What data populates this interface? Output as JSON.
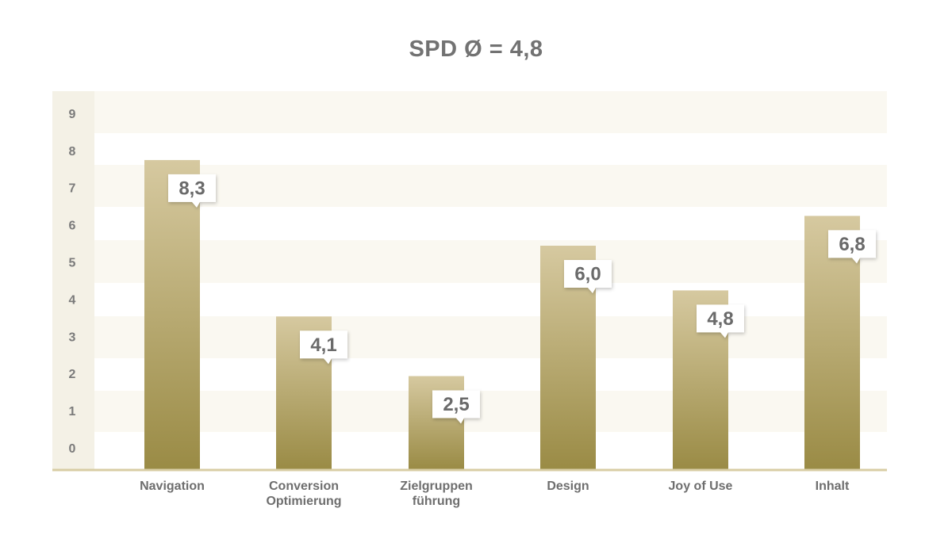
{
  "chart_data": {
    "type": "bar",
    "title": "SPD Ø = 4,8",
    "xlabel": "",
    "ylabel": "",
    "categories": [
      [
        "Navigation"
      ],
      [
        "Conversion",
        "Optimierung"
      ],
      [
        "Zielgruppen",
        "führung"
      ],
      [
        "Design"
      ],
      [
        "Joy of Use"
      ],
      [
        "Inhalt"
      ]
    ],
    "values": [
      8.3,
      4.1,
      2.5,
      6.0,
      4.8,
      6.8
    ],
    "value_labels": [
      "8,3",
      "4,1",
      "2,5",
      "6,0",
      "4,8",
      "6,8"
    ],
    "y_ticks": [
      "0",
      "1",
      "2",
      "3",
      "4",
      "5",
      "6",
      "7",
      "8",
      "9"
    ],
    "ylim": [
      0,
      9
    ],
    "grid": "alternating horizontal bands",
    "legend": "none",
    "colors": {
      "bar_top": "#d6c9a0",
      "bar_bottom": "#9a8b45",
      "band": "#faf8f1",
      "axis_strip": "#f4f1e6",
      "baseline": "#d8cda4",
      "label_box": "#ffffff",
      "title_text": "#727272"
    }
  }
}
